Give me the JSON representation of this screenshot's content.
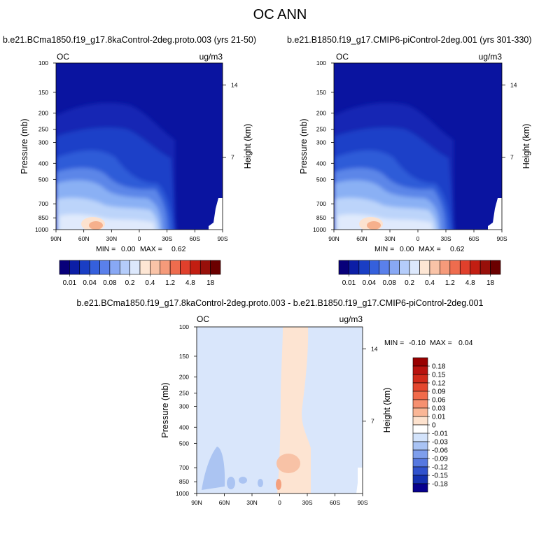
{
  "figure_title": "OC ANN",
  "chart_data": [
    {
      "id": "left",
      "type": "contour",
      "title": "b.e21.BCma1850.f19_g17.8kaControl-2deg.proto.003 (yrs 21-50)",
      "variable": "OC",
      "units": "ug/m3",
      "ylabel": "Pressure (mb)",
      "ylabel_right": "Height (km)",
      "pressure_ticks": [
        "100",
        "150",
        "200",
        "250",
        "300",
        "400",
        "500",
        "700",
        "850",
        "1000"
      ],
      "height_ticks": [
        "14",
        "7"
      ],
      "lat_ticks": [
        "90N",
        "60N",
        "30N",
        "0",
        "30S",
        "60S",
        "90S"
      ],
      "ylim": [
        1000,
        100
      ],
      "xlim": [
        "90N",
        "90S"
      ],
      "min_label": "MIN =",
      "min_value": "0.00",
      "max_label": "MAX =",
      "max_value": "0.62",
      "colorbar_labels": [
        "0.01",
        "0.04",
        "0.08",
        "0.2",
        "0.4",
        "1.2",
        "4.8",
        "18"
      ],
      "colorbar_colors": [
        "#08007a",
        "#0c1ea6",
        "#1a3ec4",
        "#3560dc",
        "#5a80ea",
        "#88a8f4",
        "#b4ccfa",
        "#dce8fc",
        "#fde6d4",
        "#f9c3a7",
        "#f59a7a",
        "#ee6c4e",
        "#e0402c",
        "#c21e12",
        "#98100a",
        "#6b0000"
      ]
    },
    {
      "id": "right",
      "type": "contour",
      "title": "b.e21.B1850.f19_g17.CMIP6-piControl-2deg.001 (yrs 301-330)",
      "variable": "OC",
      "units": "ug/m3",
      "ylabel": "Pressure (mb)",
      "ylabel_right": "Height (km)",
      "pressure_ticks": [
        "100",
        "150",
        "200",
        "250",
        "300",
        "400",
        "500",
        "700",
        "850",
        "1000"
      ],
      "height_ticks": [
        "14",
        "7"
      ],
      "lat_ticks": [
        "90N",
        "60N",
        "30N",
        "0",
        "30S",
        "60S",
        "90S"
      ],
      "ylim": [
        1000,
        100
      ],
      "xlim": [
        "90N",
        "90S"
      ],
      "min_label": "MIN =",
      "min_value": "0.00",
      "max_label": "MAX =",
      "max_value": "0.62",
      "colorbar_labels": [
        "0.01",
        "0.04",
        "0.08",
        "0.2",
        "0.4",
        "1.2",
        "4.8",
        "18"
      ],
      "colorbar_colors": [
        "#08007a",
        "#0c1ea6",
        "#1a3ec4",
        "#3560dc",
        "#5a80ea",
        "#88a8f4",
        "#b4ccfa",
        "#dce8fc",
        "#fde6d4",
        "#f9c3a7",
        "#f59a7a",
        "#ee6c4e",
        "#e0402c",
        "#c21e12",
        "#98100a",
        "#6b0000"
      ]
    },
    {
      "id": "diff",
      "type": "contour",
      "title": "b.e21.BCma1850.f19_g17.8kaControl-2deg.proto.003 - b.e21.B1850.f19_g17.CMIP6-piControl-2deg.001",
      "variable": "OC",
      "units": "ug/m3",
      "ylabel": "Pressure (mb)",
      "ylabel_right": "Height (km)",
      "pressure_ticks": [
        "100",
        "150",
        "200",
        "250",
        "300",
        "400",
        "500",
        "700",
        "850",
        "1000"
      ],
      "height_ticks": [
        "14",
        "7"
      ],
      "lat_ticks": [
        "90N",
        "60N",
        "30N",
        "0",
        "30S",
        "60S",
        "90S"
      ],
      "ylim": [
        1000,
        100
      ],
      "xlim": [
        "90N",
        "90S"
      ],
      "min_label": "MIN =",
      "min_value": "-0.10",
      "max_label": "MAX =",
      "max_value": "0.04",
      "colorbar_labels": [
        "0.18",
        "0.15",
        "0.12",
        "0.09",
        "0.06",
        "0.03",
        "0.01",
        "0",
        "-0.01",
        "-0.03",
        "-0.06",
        "-0.09",
        "-0.12",
        "-0.15",
        "-0.18"
      ],
      "colorbar_colors": [
        "#990000",
        "#b8120e",
        "#d12a1a",
        "#e4472e",
        "#f06a4a",
        "#f69070",
        "#fab696",
        "#fde2ce",
        "#ffffff",
        "#d3e3fb",
        "#a9c3f4",
        "#7e9eec",
        "#5678e0",
        "#3052cd",
        "#1430b0",
        "#07008e"
      ]
    }
  ]
}
